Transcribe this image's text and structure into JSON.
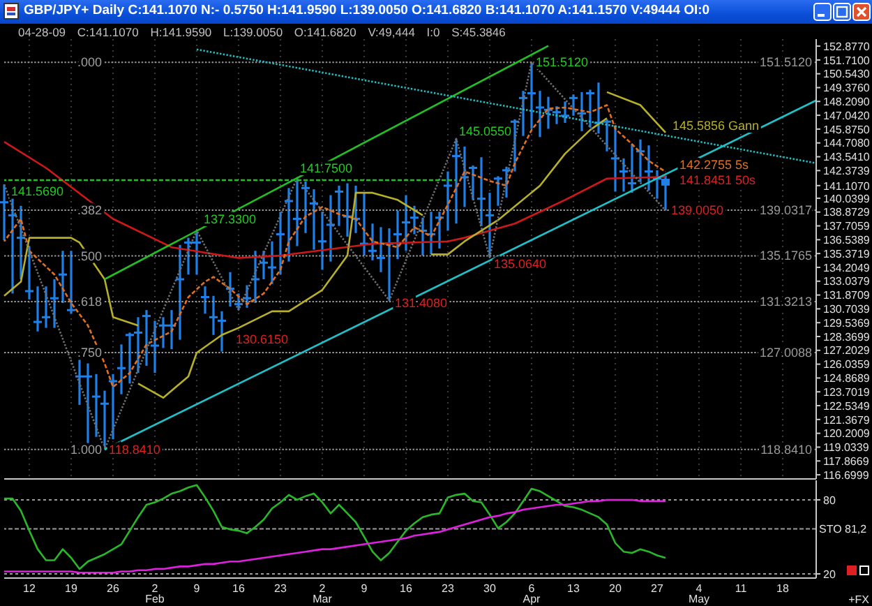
{
  "chart_data": [
    {
      "type": "candlestick",
      "title": "GBP/JPY+ Daily C:141.1070 N:- 0.5750 H:141.9590 L:139.0050 O:141.6820 B:141.1070 A:141.1570 V:49444 OI:0",
      "subtitle": "04-28-09 C:141.1070 H:141.9590 L:139.0050 O:141.6820 V:49,444 I:0 S:45.3846",
      "categories": [
        null,
        null,
        null,
        null,
        null,
        null,
        null,
        null,
        null,
        null,
        null,
        null,
        null,
        null,
        null,
        null,
        null,
        null,
        null,
        null,
        null,
        null,
        null,
        null,
        null,
        null,
        null,
        null,
        null,
        null,
        null,
        null,
        null,
        null,
        null,
        null,
        null,
        null,
        null,
        null,
        null,
        null,
        null,
        null,
        null,
        null,
        null,
        null,
        null,
        null,
        null,
        null,
        null,
        null,
        null,
        null,
        null,
        null,
        null,
        null,
        null,
        null,
        null,
        null,
        null,
        null,
        null,
        null,
        null,
        null,
        null,
        null,
        null,
        null,
        null,
        null,
        null,
        null,
        null,
        null,
        null,
        null,
        null,
        null,
        null,
        null,
        null,
        null,
        null,
        null,
        null,
        null,
        null,
        null,
        null,
        null,
        null,
        null
      ],
      "color": "#1f80e8",
      "ohlc": [
        [
          139.7,
          141.2,
          136.5,
          139.7
        ],
        [
          138.6,
          140.0,
          132.0,
          138.6
        ],
        [
          136.7,
          139.4,
          133.2,
          136.7
        ],
        [
          132.2,
          136.0,
          131.5,
          132.2
        ],
        [
          129.6,
          132.6,
          128.8,
          129.6
        ],
        [
          130.0,
          132.6,
          129.1,
          130.0
        ],
        [
          131.6,
          133.2,
          129.1,
          131.6
        ],
        [
          133.6,
          135.6,
          131.2,
          133.6
        ],
        [
          130.6,
          135.6,
          130.3,
          130.6
        ],
        [
          125.0,
          126.4,
          122.6,
          125.0
        ],
        [
          125.0,
          126.1,
          119.1,
          125.0
        ],
        [
          123.3,
          125.2,
          119.9,
          123.3
        ],
        [
          122.7,
          123.8,
          118.841,
          122.7
        ],
        [
          124.6,
          125.2,
          119.7,
          124.6
        ],
        [
          125.7,
          127.7,
          123.5,
          125.7
        ],
        [
          128.5,
          128.7,
          124.4,
          128.5
        ],
        [
          128.7,
          130.0,
          125.3,
          128.7
        ],
        [
          130.1,
          130.6,
          125.9,
          130.1
        ],
        [
          127.6,
          129.7,
          125.3,
          127.6
        ],
        [
          129.3,
          130.0,
          127.4,
          129.3
        ],
        [
          129.3,
          130.6,
          127.3,
          129.3
        ],
        [
          133.2,
          136.1,
          128.1,
          133.2
        ],
        [
          136.3,
          136.7,
          133.6,
          136.3
        ],
        [
          136.3,
          137.33,
          133.6,
          136.3
        ],
        [
          131.7,
          132.6,
          130.3,
          131.7
        ],
        [
          130.0,
          131.8,
          128.5,
          130.0
        ],
        [
          129.7,
          130.5,
          127.1,
          129.7
        ],
        [
          132.4,
          133.8,
          130.9,
          132.4
        ],
        [
          131.1,
          132.0,
          130.615,
          131.1
        ],
        [
          131.6,
          132.7,
          130.8,
          131.6
        ],
        [
          133.2,
          135.6,
          131.2,
          133.2
        ],
        [
          134.6,
          135.6,
          133.2,
          134.6
        ],
        [
          134.2,
          136.4,
          132.8,
          134.2
        ],
        [
          137.0,
          138.9,
          133.6,
          137.0
        ],
        [
          139.8,
          140.9,
          134.7,
          139.8
        ],
        [
          138.3,
          141.75,
          136.0,
          138.3
        ],
        [
          140.9,
          141.45,
          137.1,
          140.9
        ],
        [
          139.6,
          140.8,
          135.7,
          139.6
        ],
        [
          136.4,
          138.9,
          134.0,
          136.4
        ],
        [
          137.8,
          140.3,
          134.7,
          137.8
        ],
        [
          140.6,
          141.1,
          137.7,
          140.6
        ],
        [
          138.5,
          141.3,
          136.8,
          138.5
        ],
        [
          138.3,
          141.1,
          137.1,
          138.3
        ],
        [
          136.2,
          140.5,
          135.2,
          136.2
        ],
        [
          135.6,
          137.9,
          134.8,
          135.6
        ],
        [
          135.0,
          137.6,
          133.8,
          135.0
        ],
        [
          136.2,
          137.5,
          131.408,
          136.2
        ],
        [
          137.0,
          139.0,
          134.9,
          137.0
        ],
        [
          138.0,
          140.3,
          135.6,
          138.0
        ],
        [
          138.4,
          139.4,
          137.0,
          138.4
        ],
        [
          137.3,
          138.4,
          135.2,
          137.3
        ],
        [
          137.0,
          138.9,
          135.3,
          137.0
        ],
        [
          138.4,
          138.9,
          135.8,
          138.4
        ],
        [
          141.1,
          142.3,
          137.3,
          141.1
        ],
        [
          143.6,
          145.055,
          137.9,
          143.6
        ],
        [
          141.8,
          144.4,
          139.3,
          141.8
        ],
        [
          142.6,
          142.8,
          139.9,
          142.6
        ],
        [
          140.0,
          143.5,
          137.7,
          140.0
        ],
        [
          138.6,
          140.5,
          135.064,
          138.6
        ],
        [
          141.7,
          141.9,
          139.4,
          141.7
        ],
        [
          142.4,
          142.7,
          140.1,
          142.4
        ],
        [
          146.5,
          146.7,
          142.3,
          146.5
        ],
        [
          148.5,
          149.1,
          145.3,
          148.5
        ],
        [
          148.9,
          151.512,
          145.9,
          148.9
        ],
        [
          147.7,
          149.1,
          145.2,
          147.7
        ],
        [
          147.5,
          148.6,
          145.9,
          147.5
        ],
        [
          147.3,
          147.8,
          146.3,
          147.3
        ],
        [
          147.0,
          148.2,
          146.4,
          147.0
        ],
        [
          148.5,
          148.8,
          147.0,
          148.5
        ],
        [
          147.2,
          149.0,
          145.7,
          147.2
        ],
        [
          148.9,
          149.2,
          146.0,
          148.9
        ],
        [
          146.4,
          149.8,
          145.5,
          146.4
        ],
        [
          146.5,
          146.7,
          144.0,
          146.5
        ],
        [
          143.4,
          146.2,
          140.6,
          143.4
        ],
        [
          142.3,
          143.4,
          140.6,
          142.3
        ],
        [
          141.3,
          144.6,
          140.5,
          141.3
        ],
        [
          144.0,
          145.0,
          141.4,
          144.0
        ],
        [
          142.3,
          144.5,
          140.7,
          142.3
        ],
        [
          141.7,
          142.4,
          140.0,
          141.7
        ],
        [
          141.682,
          141.959,
          139.005,
          141.107
        ],
        null,
        null,
        null,
        null,
        null,
        null,
        null,
        null,
        null,
        null,
        null,
        null,
        null,
        null,
        null,
        null,
        null,
        null
      ],
      "series": [
        {
          "type": "line",
          "color": "#d01818",
          "values": [
            144.8,
            null,
            null,
            null,
            null,
            142.6,
            null,
            null,
            null,
            null,
            null,
            null,
            null,
            138.3,
            null,
            null,
            null,
            null,
            null,
            null,
            135.9,
            null,
            null,
            null,
            null,
            null,
            null,
            null,
            135.0,
            null,
            null,
            null,
            null,
            135.2,
            null,
            null,
            null,
            null,
            null,
            null,
            null,
            null,
            null,
            null,
            136.2,
            null,
            null,
            null,
            null,
            null,
            null,
            null,
            null,
            136.4,
            null,
            136.7,
            null,
            null,
            null,
            null,
            null,
            137.9,
            null,
            null,
            null,
            null,
            null,
            139.9,
            null,
            null,
            null,
            null,
            141.7,
            null,
            null,
            null,
            null,
            null,
            null,
            141.8451,
            null,
            null,
            null,
            null,
            null,
            null,
            null,
            null,
            null,
            null,
            null,
            null,
            null,
            null,
            null,
            null,
            null,
            null
          ]
        },
        {
          "type": "line",
          "color": "#e07020",
          "line_style": "dashed",
          "values": [
            136.4,
            null,
            138.3,
            135.6,
            null,
            null,
            133.6,
            null,
            131.2,
            null,
            129.3,
            null,
            126.1,
            124.1,
            null,
            125.3,
            null,
            127.7,
            null,
            null,
            128.8,
            null,
            131.7,
            null,
            133.0,
            133.4,
            null,
            132.4,
            null,
            131.1,
            null,
            132.0,
            null,
            134.0,
            136.4,
            null,
            138.5,
            null,
            139.3,
            null,
            138.7,
            null,
            138.3,
            null,
            136.4,
            null,
            null,
            135.9,
            null,
            137.6,
            null,
            136.8,
            null,
            139.5,
            null,
            142.3,
            null,
            null,
            141.5,
            null,
            141.1,
            143.0,
            null,
            145.8,
            null,
            147.6,
            null,
            147.7,
            null,
            null,
            147.3,
            null,
            147.9,
            145.9,
            null,
            144.6,
            null,
            143.2,
            null,
            142.2755,
            null,
            null,
            null,
            null,
            null,
            null,
            null,
            null,
            null,
            null,
            null,
            null,
            null,
            null,
            null,
            null,
            null,
            null
          ]
        },
        {
          "type": "line",
          "color": "#b8b028",
          "values": [
            131.8,
            null,
            133.0,
            136.7,
            null,
            null,
            null,
            null,
            136.7,
            136.3,
            null,
            null,
            133.2,
            130.0,
            null,
            null,
            129.3,
            null,
            null,
            null,
            null,
            null,
            null,
            null,
            null,
            null,
            null,
            null,
            null,
            null,
            null,
            null,
            null,
            null,
            null,
            null,
            null,
            null,
            null,
            null,
            null,
            null,
            null,
            null,
            null,
            null,
            null,
            null,
            null,
            null,
            null,
            null,
            null,
            null,
            null,
            null,
            null,
            null,
            null,
            null,
            null,
            null,
            null,
            null,
            null,
            null,
            null,
            null,
            null,
            null,
            null,
            null,
            null,
            null,
            null,
            null,
            null,
            null,
            null,
            null,
            null,
            null,
            null,
            null,
            null,
            null,
            null,
            null,
            null,
            null,
            null,
            null,
            null,
            null,
            null,
            null,
            null,
            null
          ]
        },
        {
          "type": "line",
          "color": "#b8b028",
          "values": [
            null,
            null,
            null,
            null,
            null,
            null,
            null,
            null,
            null,
            null,
            null,
            null,
            null,
            null,
            null,
            null,
            124.4,
            null,
            null,
            123.2,
            null,
            null,
            125.0,
            127.0,
            null,
            null,
            128.5,
            null,
            129.1,
            null,
            null,
            null,
            130.5,
            null,
            130.5,
            null,
            null,
            null,
            132.3,
            null,
            null,
            135.2,
            140.5,
            null,
            140.5,
            null,
            null,
            139.9,
            null,
            null,
            138.6,
            null,
            null,
            null,
            null,
            null,
            null,
            null,
            null,
            null,
            null,
            null,
            null,
            null,
            null,
            null,
            null,
            null,
            null,
            null,
            null,
            null,
            null,
            null,
            null,
            null,
            null,
            null,
            null,
            null,
            null,
            null,
            null,
            null,
            null,
            null,
            null,
            null,
            null,
            null,
            null,
            null,
            null,
            null,
            null,
            null,
            null,
            null
          ]
        },
        {
          "type": "line",
          "color": "#b8b028",
          "values": [
            null,
            null,
            null,
            null,
            null,
            null,
            null,
            null,
            null,
            null,
            null,
            null,
            null,
            null,
            null,
            null,
            null,
            null,
            null,
            null,
            null,
            null,
            null,
            null,
            null,
            null,
            null,
            null,
            null,
            null,
            null,
            null,
            null,
            null,
            null,
            null,
            null,
            null,
            null,
            null,
            null,
            null,
            null,
            null,
            null,
            null,
            null,
            null,
            null,
            null,
            null,
            135.3,
            null,
            135.3,
            null,
            136.4,
            null,
            null,
            null,
            138.2,
            null,
            null,
            null,
            null,
            141.1,
            null,
            null,
            143.8,
            null,
            null,
            145.8,
            null,
            146.8,
            null,
            null,
            null,
            null,
            null,
            null,
            null,
            null,
            null,
            null,
            null,
            null,
            null,
            null,
            null,
            null,
            null,
            null,
            null,
            null,
            null,
            null,
            null,
            null,
            null
          ]
        },
        {
          "type": "line",
          "color": "#b8b028",
          "values": [
            null,
            null,
            null,
            null,
            null,
            null,
            null,
            null,
            null,
            null,
            null,
            null,
            null,
            null,
            null,
            null,
            null,
            null,
            null,
            null,
            null,
            null,
            null,
            null,
            null,
            null,
            null,
            null,
            null,
            null,
            null,
            null,
            null,
            null,
            null,
            null,
            null,
            null,
            null,
            null,
            null,
            null,
            null,
            null,
            null,
            null,
            null,
            null,
            null,
            null,
            null,
            null,
            null,
            null,
            null,
            null,
            null,
            null,
            null,
            null,
            null,
            null,
            null,
            null,
            null,
            null,
            null,
            null,
            null,
            null,
            null,
            null,
            149.0,
            null,
            null,
            null,
            147.9,
            null,
            null,
            145.5856,
            null,
            null,
            null,
            null,
            null,
            null,
            null,
            null,
            null,
            null,
            null,
            null,
            null,
            null,
            null,
            null,
            null,
            null
          ]
        },
        {
          "type": "line",
          "color": "#707070",
          "line_style": "dotted",
          "values": [
            141.2,
            null,
            null,
            null,
            null,
            null,
            null,
            null,
            null,
            null,
            null,
            null,
            118.841,
            null,
            null,
            null,
            null,
            null,
            null,
            null,
            null,
            null,
            null,
            137.33,
            null,
            null,
            null,
            null,
            130.615,
            null,
            null,
            null,
            null,
            null,
            null,
            141.75,
            null,
            null,
            null,
            null,
            null,
            null,
            null,
            null,
            null,
            null,
            131.408,
            null,
            null,
            null,
            null,
            null,
            null,
            null,
            145.055,
            null,
            null,
            null,
            135.064,
            null,
            null,
            null,
            null,
            151.512,
            null,
            null,
            null,
            null,
            null,
            null,
            null,
            null,
            null,
            null,
            null,
            null,
            null,
            null,
            null,
            139.005,
            null,
            null,
            null,
            null,
            null,
            null,
            null,
            null,
            null,
            null,
            null,
            null,
            null,
            null,
            null,
            null,
            null,
            null
          ]
        },
        {
          "type": "line",
          "color": "#22c022",
          "values": [
            null,
            null,
            null,
            null,
            null,
            null,
            null,
            null,
            null,
            null,
            null,
            null,
            133.2,
            null,
            null,
            null,
            null,
            null,
            null,
            null,
            null,
            null,
            null,
            null,
            null,
            null,
            null,
            null,
            null,
            null,
            null,
            null,
            null,
            null,
            null,
            null,
            null,
            null,
            null,
            null,
            null,
            null,
            null,
            null,
            null,
            null,
            null,
            null,
            null,
            null,
            null,
            null,
            null,
            null,
            null,
            null,
            null,
            null,
            null,
            null,
            null,
            null,
            null,
            null,
            null,
            152.9,
            null,
            null,
            null,
            null,
            null,
            null,
            null,
            null,
            null,
            null,
            null,
            null,
            null,
            null,
            null,
            null,
            null,
            null,
            null,
            null,
            null,
            null,
            null,
            null,
            null,
            null,
            null,
            null,
            null,
            null,
            null,
            null
          ]
        },
        {
          "type": "line",
          "color": "#22c022",
          "line_style": "dashed",
          "values": [
            141.569,
            null,
            null,
            null,
            null,
            null,
            null,
            null,
            null,
            null,
            null,
            null,
            null,
            null,
            null,
            null,
            null,
            null,
            null,
            null,
            null,
            null,
            null,
            null,
            null,
            null,
            null,
            null,
            null,
            null,
            null,
            null,
            null,
            null,
            null,
            null,
            null,
            null,
            null,
            null,
            null,
            null,
            null,
            null,
            null,
            null,
            null,
            null,
            null,
            null,
            null,
            null,
            null,
            null,
            141.569,
            null,
            null,
            null,
            null,
            null,
            null,
            null,
            null,
            null,
            null,
            null,
            null,
            null,
            null,
            null,
            null,
            null,
            null,
            null,
            null,
            null,
            null,
            null,
            null,
            null,
            null,
            null,
            null,
            null,
            null,
            null,
            null,
            null,
            null,
            null,
            null,
            null,
            null,
            null,
            null,
            null,
            null,
            null
          ]
        },
        {
          "type": "line",
          "color": "#20c0c8",
          "values": [
            null,
            null,
            null,
            null,
            null,
            null,
            null,
            null,
            null,
            null,
            null,
            null,
            118.841,
            null,
            null,
            null,
            null,
            null,
            null,
            null,
            null,
            null,
            null,
            null,
            null,
            null,
            null,
            null,
            null,
            null,
            null,
            null,
            null,
            null,
            null,
            null,
            null,
            null,
            null,
            null,
            null,
            null,
            null,
            null,
            null,
            null,
            null,
            null,
            null,
            null,
            null,
            null,
            null,
            null,
            null,
            null,
            null,
            null,
            null,
            null,
            null,
            null,
            null,
            null,
            null,
            null,
            null,
            null,
            null,
            null,
            null,
            null,
            null,
            null,
            null,
            null,
            null,
            null,
            null,
            null,
            null,
            null,
            null,
            null,
            null,
            null,
            null,
            null,
            null,
            null,
            null,
            null,
            null,
            null,
            null,
            null,
            null,
            148.3
          ]
        },
        {
          "type": "line",
          "color": "#20c0c8",
          "line_style": "dotted",
          "values": [
            null,
            null,
            null,
            null,
            null,
            null,
            null,
            null,
            null,
            null,
            null,
            null,
            null,
            null,
            null,
            null,
            null,
            null,
            null,
            null,
            null,
            null,
            null,
            152.6,
            null,
            null,
            null,
            null,
            null,
            null,
            null,
            null,
            null,
            null,
            null,
            null,
            null,
            null,
            null,
            null,
            null,
            null,
            null,
            null,
            null,
            null,
            null,
            null,
            null,
            null,
            null,
            null,
            null,
            null,
            null,
            null,
            null,
            null,
            null,
            null,
            null,
            null,
            null,
            null,
            null,
            null,
            null,
            null,
            null,
            null,
            null,
            null,
            null,
            null,
            null,
            null,
            null,
            null,
            null,
            null,
            null,
            null,
            null,
            null,
            null,
            null,
            null,
            null,
            null,
            null,
            null,
            null,
            null,
            null,
            null,
            null,
            null,
            143.0
          ]
        }
      ],
      "ylim": [
        116.35,
        153.47
      ],
      "yticks": [
        {
          "value": 152.877,
          "label": "152.8770"
        },
        {
          "value": 151.71,
          "label": "151.7100"
        },
        {
          "value": 150.543,
          "label": "150.5430"
        },
        {
          "value": 149.376,
          "label": "149.3760"
        },
        {
          "value": 148.209,
          "label": "148.2090"
        },
        {
          "value": 147.042,
          "label": "147.0420"
        },
        {
          "value": 145.875,
          "label": "145.8750"
        },
        {
          "value": 144.708,
          "label": "144.7080"
        },
        {
          "value": 143.541,
          "label": "143.5410"
        },
        142.3739,
        {
          "value": 141.107,
          "label": "141.1070"
        },
        140.0399,
        138.8729,
        137.7059,
        136.5389,
        135.3719,
        134.2049,
        133.0379,
        131.8709,
        130.7039,
        129.5369,
        128.3699,
        127.2029,
        126.0359,
        124.8689,
        123.7019,
        122.5349,
        121.3679,
        120.2009,
        119.0339,
        117.8669,
        116.6999
      ],
      "tick_labels": "y",
      "grid": "x",
      "ref_lines": [
        {
          "axis": "y",
          "value": 151.512,
          "label": "151.5120",
          "color": "#9a9a9a",
          "line_style": "dotted"
        },
        {
          "axis": "y",
          "value": 139.0317,
          "label": "139.0317",
          "color": "#9a9a9a",
          "line_style": "dotted"
        },
        {
          "axis": "y",
          "value": 135.1765,
          "label": "135.1765",
          "color": "#9a9a9a",
          "line_style": "dotted"
        },
        {
          "axis": "y",
          "value": 131.3213,
          "label": "131.3213",
          "color": "#9a9a9a",
          "line_style": "dotted"
        },
        {
          "axis": "y",
          "value": 127.0088,
          "label": "127.0088",
          "color": "#9a9a9a",
          "line_style": "dotted"
        },
        {
          "axis": "y",
          "value": 118.841,
          "label": "118.8410",
          "color": "#9a9a9a",
          "line_style": "dotted"
        }
      ],
      "annotations": [
        {
          "text": "141.5690",
          "y": 141.569
        },
        "137.3300",
        {
          "text": "141.7500",
          "y": 141.75
        },
        "145.0550",
        {
          "text": "151.5120",
          "y": 151.512
        },
        {
          "text": "118.8410",
          "y": 118.841
        },
        {
          "text": "130.6150",
          "y": 130.615
        },
        {
          "text": "131.4080",
          "y": 131.408
        },
        {
          "text": "135.0640",
          "y": 135.064
        },
        {
          "text": "139.0050",
          "y": 139.005
        },
        "142.2755 5s",
        "141.8451 50s",
        "145.5856 Gann",
        ".000",
        ".382",
        ".500",
        ".618",
        ".750",
        "1.000"
      ]
    },
    {
      "type": "line",
      "categories": [
        null,
        null,
        null,
        "12",
        null,
        null,
        null,
        null,
        "19",
        null,
        null,
        null,
        null,
        "26",
        null,
        null,
        null,
        null,
        "2\nFeb",
        null,
        null,
        null,
        null,
        "9",
        null,
        null,
        null,
        null,
        "16",
        null,
        null,
        null,
        null,
        "23",
        null,
        null,
        null,
        null,
        "2\nMar",
        null,
        null,
        null,
        null,
        "9",
        null,
        null,
        null,
        null,
        "16",
        null,
        null,
        null,
        null,
        "23",
        null,
        null,
        null,
        null,
        "30",
        null,
        null,
        null,
        null,
        "6\nApr",
        null,
        null,
        null,
        null,
        "13",
        null,
        null,
        null,
        null,
        "20",
        null,
        null,
        null,
        null,
        "27",
        null,
        null,
        null,
        null,
        "4\nMay",
        null,
        null,
        null,
        null,
        "11",
        null,
        null,
        null,
        null,
        "18",
        null,
        null,
        null,
        null
      ],
      "series": [
        {
          "color": "#28b828",
          "values": [
            81,
            81,
            71,
            55,
            40,
            31,
            31,
            40,
            33,
            24,
            30,
            33,
            36,
            40,
            44,
            55,
            66,
            76,
            78,
            81,
            85,
            87,
            90,
            92,
            82,
            71,
            58,
            56,
            55,
            53,
            58,
            64,
            73,
            78,
            84,
            80,
            83,
            85,
            78,
            69,
            76,
            69,
            62,
            50,
            38,
            31,
            37,
            46,
            55,
            61,
            66,
            68,
            69,
            82,
            84,
            85,
            79,
            78,
            68,
            57,
            62,
            69,
            79,
            89,
            87,
            83,
            79,
            75,
            74,
            72,
            69,
            66,
            60,
            45,
            38,
            37,
            40,
            38,
            35,
            33,
            null,
            null,
            null,
            null,
            null,
            null,
            null,
            null,
            null,
            null,
            null,
            null,
            null,
            null,
            null,
            null,
            null,
            null
          ]
        },
        {
          "color": "#e020e0",
          "values": [
            22,
            22,
            22,
            22,
            22,
            22,
            22,
            22,
            22,
            21,
            21,
            21,
            21,
            21,
            22,
            22,
            23,
            23,
            24,
            24,
            25,
            26,
            26,
            27,
            28,
            28,
            29,
            30,
            30,
            31,
            32,
            33,
            34,
            35,
            36,
            37,
            38,
            39,
            40,
            40,
            41,
            42,
            43,
            44,
            45,
            46,
            47,
            48,
            49,
            51,
            52,
            53,
            54,
            56,
            58,
            60,
            62,
            64,
            66,
            67,
            69,
            70,
            72,
            73,
            74,
            75,
            76,
            76,
            77,
            78,
            79,
            79,
            80,
            80,
            80,
            80,
            79,
            79,
            79,
            79,
            null,
            null,
            null,
            null,
            null,
            null,
            null,
            null,
            null,
            null,
            null,
            null,
            null,
            null,
            null,
            null,
            null,
            null
          ]
        }
      ],
      "ylim": [
        16.6,
        95.8
      ],
      "yticks": [
        20,
        80
      ],
      "grid": "y",
      "ref_lines": [
        {
          "axis": "y",
          "value": 56.5,
          "label": "STO 81,2",
          "color": "#9a9a9a",
          "line_style": "dashed"
        }
      ],
      "annotations": [
        "+FX"
      ]
    }
  ]
}
